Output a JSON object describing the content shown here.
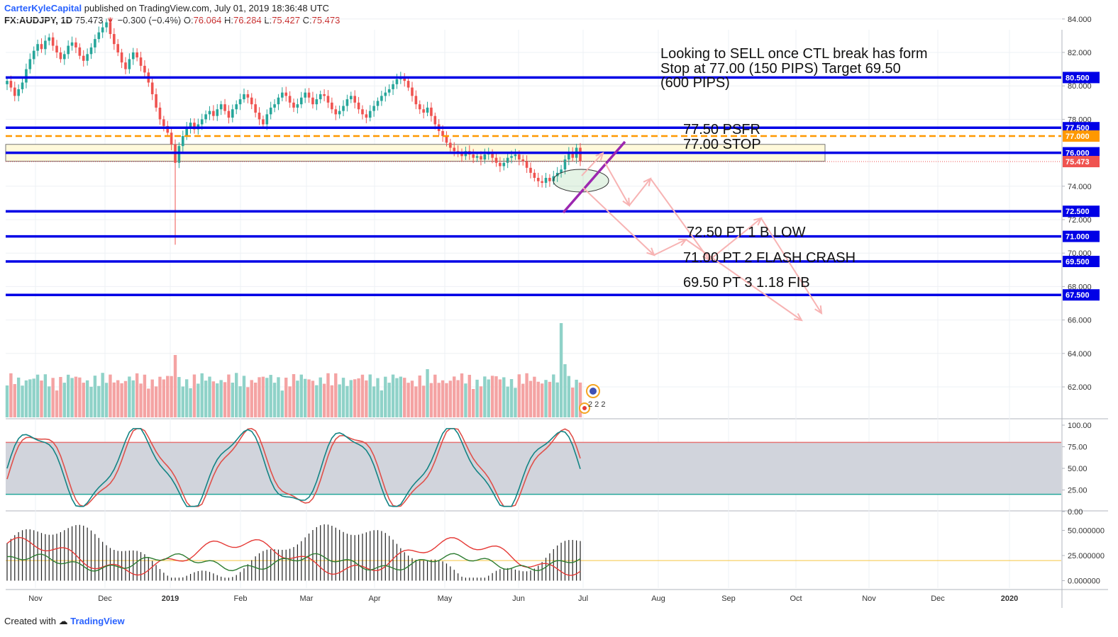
{
  "header": {
    "author": "CarterKyleCapital",
    "published": "published on TradingView.com, July 01, 2019 18:36:48 UTC",
    "symbol": "FX:AUDJPY, 1D",
    "last": "75.473",
    "change_arrow": "▼",
    "change": "−0.300 (−0.4%)",
    "o_label": "O:",
    "o": "76.064",
    "h_label": "H:",
    "h": "76.284",
    "l_label": "L:",
    "l": "75.427",
    "c_label": "C:",
    "c": "75.473"
  },
  "footer": {
    "created": "Created with",
    "brand": "TradingView"
  },
  "annotations": {
    "plan_1": "Looking to SELL once CTL break has form",
    "plan_2": "Stop at 77.00 (150 PIPS) Target 69.50",
    "plan_3": "(600 PIPS)",
    "psfr": "77.50 PSFR",
    "stop": "77.00 STOP",
    "pt1": "72.50 PT 1 B LOW",
    "pt2": "71.00 PT 2 FLASH CRASH",
    "pt3": "69.50 PT 3 1.18 FIB"
  },
  "event_badge": "2 2 2",
  "colors": {
    "level_line": "#0000e6",
    "stop_line": "#ff9800",
    "zone_fill": "#fff9db",
    "up": "#26a69a",
    "down": "#ef5350",
    "vol_up": "#8fd2c8",
    "vol_down": "#f4a3a3",
    "trendline": "#9c27b0",
    "projection": "#f7b3b3",
    "stoch_k": "#138484",
    "stoch_d": "#e0504a",
    "stoch_band": "#d1d4dc",
    "last_price": "#ef5350"
  },
  "chart_data": {
    "type": "candlestick",
    "price_axis": {
      "ylim": [
        61.6,
        85.0
      ],
      "ticks": [
        "84.000",
        "82.000",
        "80.000",
        "78.000",
        "74.000",
        "72.000",
        "70.000",
        "68.000",
        "66.000",
        "64.000",
        "62.000"
      ],
      "tick_values": [
        84,
        82,
        80,
        78,
        74,
        72,
        70,
        68,
        66,
        64,
        62
      ]
    },
    "time_axis": {
      "labels": [
        "Nov",
        "Dec",
        "2019",
        "Feb",
        "Mar",
        "Apr",
        "May",
        "Jun",
        "Jul",
        "Aug",
        "Sep",
        "Oct",
        "Nov",
        "Dec",
        "2020"
      ]
    },
    "levels": [
      {
        "value": 80.5,
        "label": "80.500",
        "style": "solid-blue"
      },
      {
        "value": 77.5,
        "label": "77.500",
        "style": "solid-blue"
      },
      {
        "value": 77.0,
        "label": "77.000",
        "style": "dashed-orange"
      },
      {
        "value": 76.0,
        "label": "76.000",
        "style": "solid-blue"
      },
      {
        "value": 75.473,
        "label": "75.473",
        "style": "last-price"
      },
      {
        "value": 72.5,
        "label": "72.500",
        "style": "solid-blue"
      },
      {
        "value": 71.0,
        "label": "71.000",
        "style": "solid-blue"
      },
      {
        "value": 69.5,
        "label": "69.500",
        "style": "solid-blue"
      },
      {
        "value": 67.5,
        "label": "67.500",
        "style": "solid-blue"
      }
    ],
    "zone": {
      "top": 76.5,
      "bottom": 75.5
    },
    "closes": [
      80.3,
      79.9,
      79.4,
      79.8,
      80.2,
      81.0,
      81.6,
      82.1,
      82.5,
      82.2,
      82.7,
      82.9,
      82.4,
      82.0,
      81.6,
      81.9,
      82.4,
      82.6,
      82.3,
      81.8,
      81.5,
      81.9,
      82.3,
      82.8,
      83.2,
      83.5,
      83.8,
      83.1,
      82.5,
      82.0,
      81.4,
      81.0,
      81.6,
      82.0,
      81.7,
      81.2,
      80.8,
      80.2,
      79.5,
      78.7,
      78.0,
      77.6,
      77.2,
      76.5,
      75.4,
      76.4,
      77.0,
      77.5,
      77.8,
      77.4,
      77.7,
      78.0,
      78.3,
      78.5,
      78.2,
      78.6,
      78.9,
      78.5,
      78.1,
      78.6,
      78.9,
      79.2,
      79.5,
      79.3,
      78.9,
      78.4,
      78.0,
      77.7,
      78.3,
      78.7,
      78.9,
      79.3,
      79.6,
      79.4,
      79.0,
      78.7,
      78.9,
      79.3,
      79.6,
      79.3,
      78.9,
      79.2,
      79.5,
      79.4,
      79.0,
      78.6,
      78.3,
      78.5,
      78.8,
      79.2,
      79.4,
      79.0,
      78.6,
      78.3,
      78.1,
      78.5,
      78.8,
      79.1,
      79.4,
      79.6,
      79.8,
      80.1,
      80.4,
      80.5,
      80.3,
      79.9,
      79.4,
      78.9,
      78.6,
      78.4,
      78.7,
      78.2,
      77.7,
      77.3,
      77.0,
      76.6,
      76.3,
      76.1,
      76.0,
      75.8,
      76.1,
      75.9,
      75.7,
      75.8,
      75.6,
      75.9,
      76.0,
      75.7,
      75.4,
      75.2,
      75.4,
      75.7,
      75.8,
      75.9,
      75.6,
      75.5,
      75.1,
      74.8,
      74.5,
      74.3,
      74.2,
      74.5,
      74.3,
      74.6,
      74.8,
      75.0,
      75.6,
      76.0,
      75.7,
      76.3,
      75.5
    ],
    "annotated_values": {
      "stop": 77.0,
      "target": 69.5,
      "stop_pips": 150,
      "target_pips": 600
    },
    "stochastic": {
      "ylim": [
        0,
        100
      ],
      "ticks": [
        "100.00",
        "75.00",
        "50.00",
        "25.00",
        "0.00"
      ],
      "tick_values": [
        100,
        75,
        50,
        25,
        0
      ],
      "upper": 80,
      "lower": 20
    },
    "lower_indicator": {
      "ylim": [
        -5,
        62
      ],
      "ticks": [
        "50.000000",
        "25.000000",
        "0.000000"
      ],
      "tick_values": [
        50,
        25,
        0
      ],
      "reference": 20
    }
  }
}
